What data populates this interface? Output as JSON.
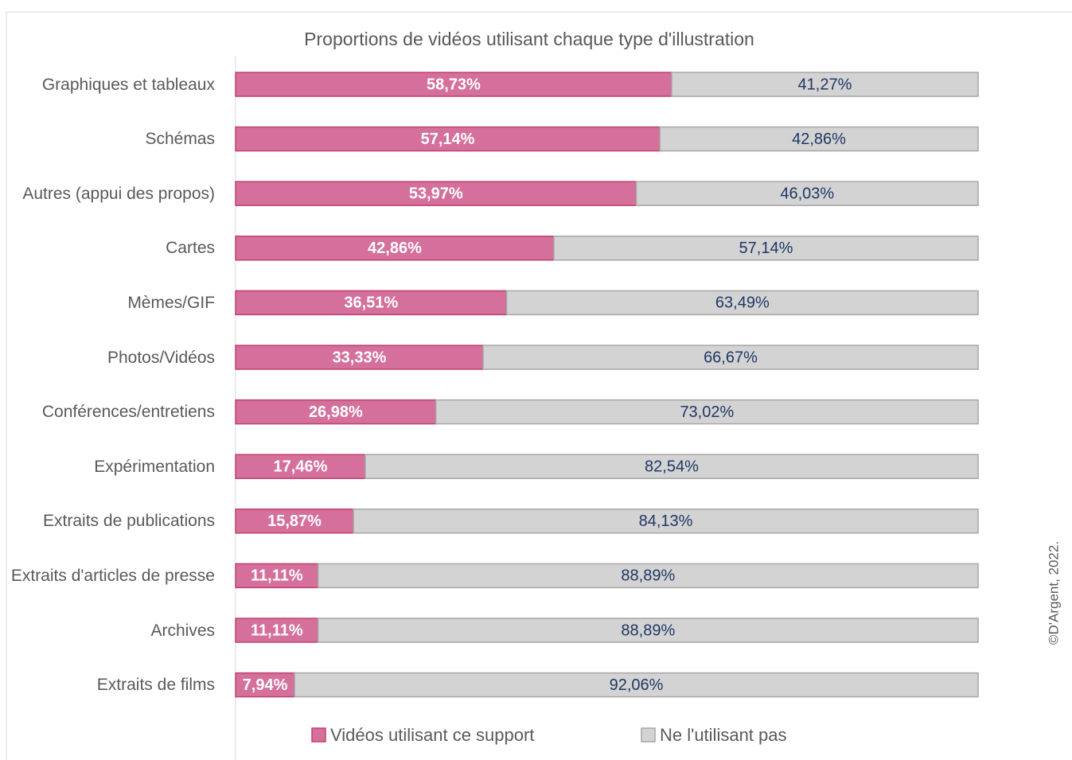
{
  "chart_data": {
    "type": "stacked_barh",
    "title": "Proportions de vidéos utilisant chaque type d'illustration",
    "categories": [
      "Graphiques et tableaux",
      "Schémas",
      "Autres (appui des propos)",
      "Cartes",
      "Mèmes/GIF",
      "Photos/Vidéos",
      "Conférences/entretiens",
      "Expérimentation",
      "Extraits de publications",
      "Extraits d'articles de presse",
      "Archives",
      "Extraits de films"
    ],
    "series": [
      {
        "name": "Vidéos utilisant ce support",
        "color": "#d4709b",
        "values": [
          58.73,
          57.14,
          53.97,
          42.86,
          36.51,
          33.33,
          26.98,
          17.46,
          15.87,
          11.11,
          11.11,
          7.94
        ],
        "value_labels": [
          "58,73%",
          "57,14%",
          "53,97%",
          "42,86%",
          "36,51%",
          "33,33%",
          "26,98%",
          "17,46%",
          "15,87%",
          "11,11%",
          "11,11%",
          "7,94%"
        ]
      },
      {
        "name": "Ne l'utilisant pas",
        "color": "#d3d3d3",
        "values": [
          41.27,
          42.86,
          46.03,
          57.14,
          63.49,
          66.67,
          73.02,
          82.54,
          84.13,
          88.89,
          88.89,
          92.06
        ],
        "value_labels": [
          "41,27%",
          "42,86%",
          "46,03%",
          "57,14%",
          "63,49%",
          "66,67%",
          "73,02%",
          "82,54%",
          "84,13%",
          "88,89%",
          "88,89%",
          "92,06%"
        ]
      }
    ],
    "xlim": [
      0,
      100
    ],
    "legend": "bottom",
    "credit": "©D'Argent, 2022."
  }
}
